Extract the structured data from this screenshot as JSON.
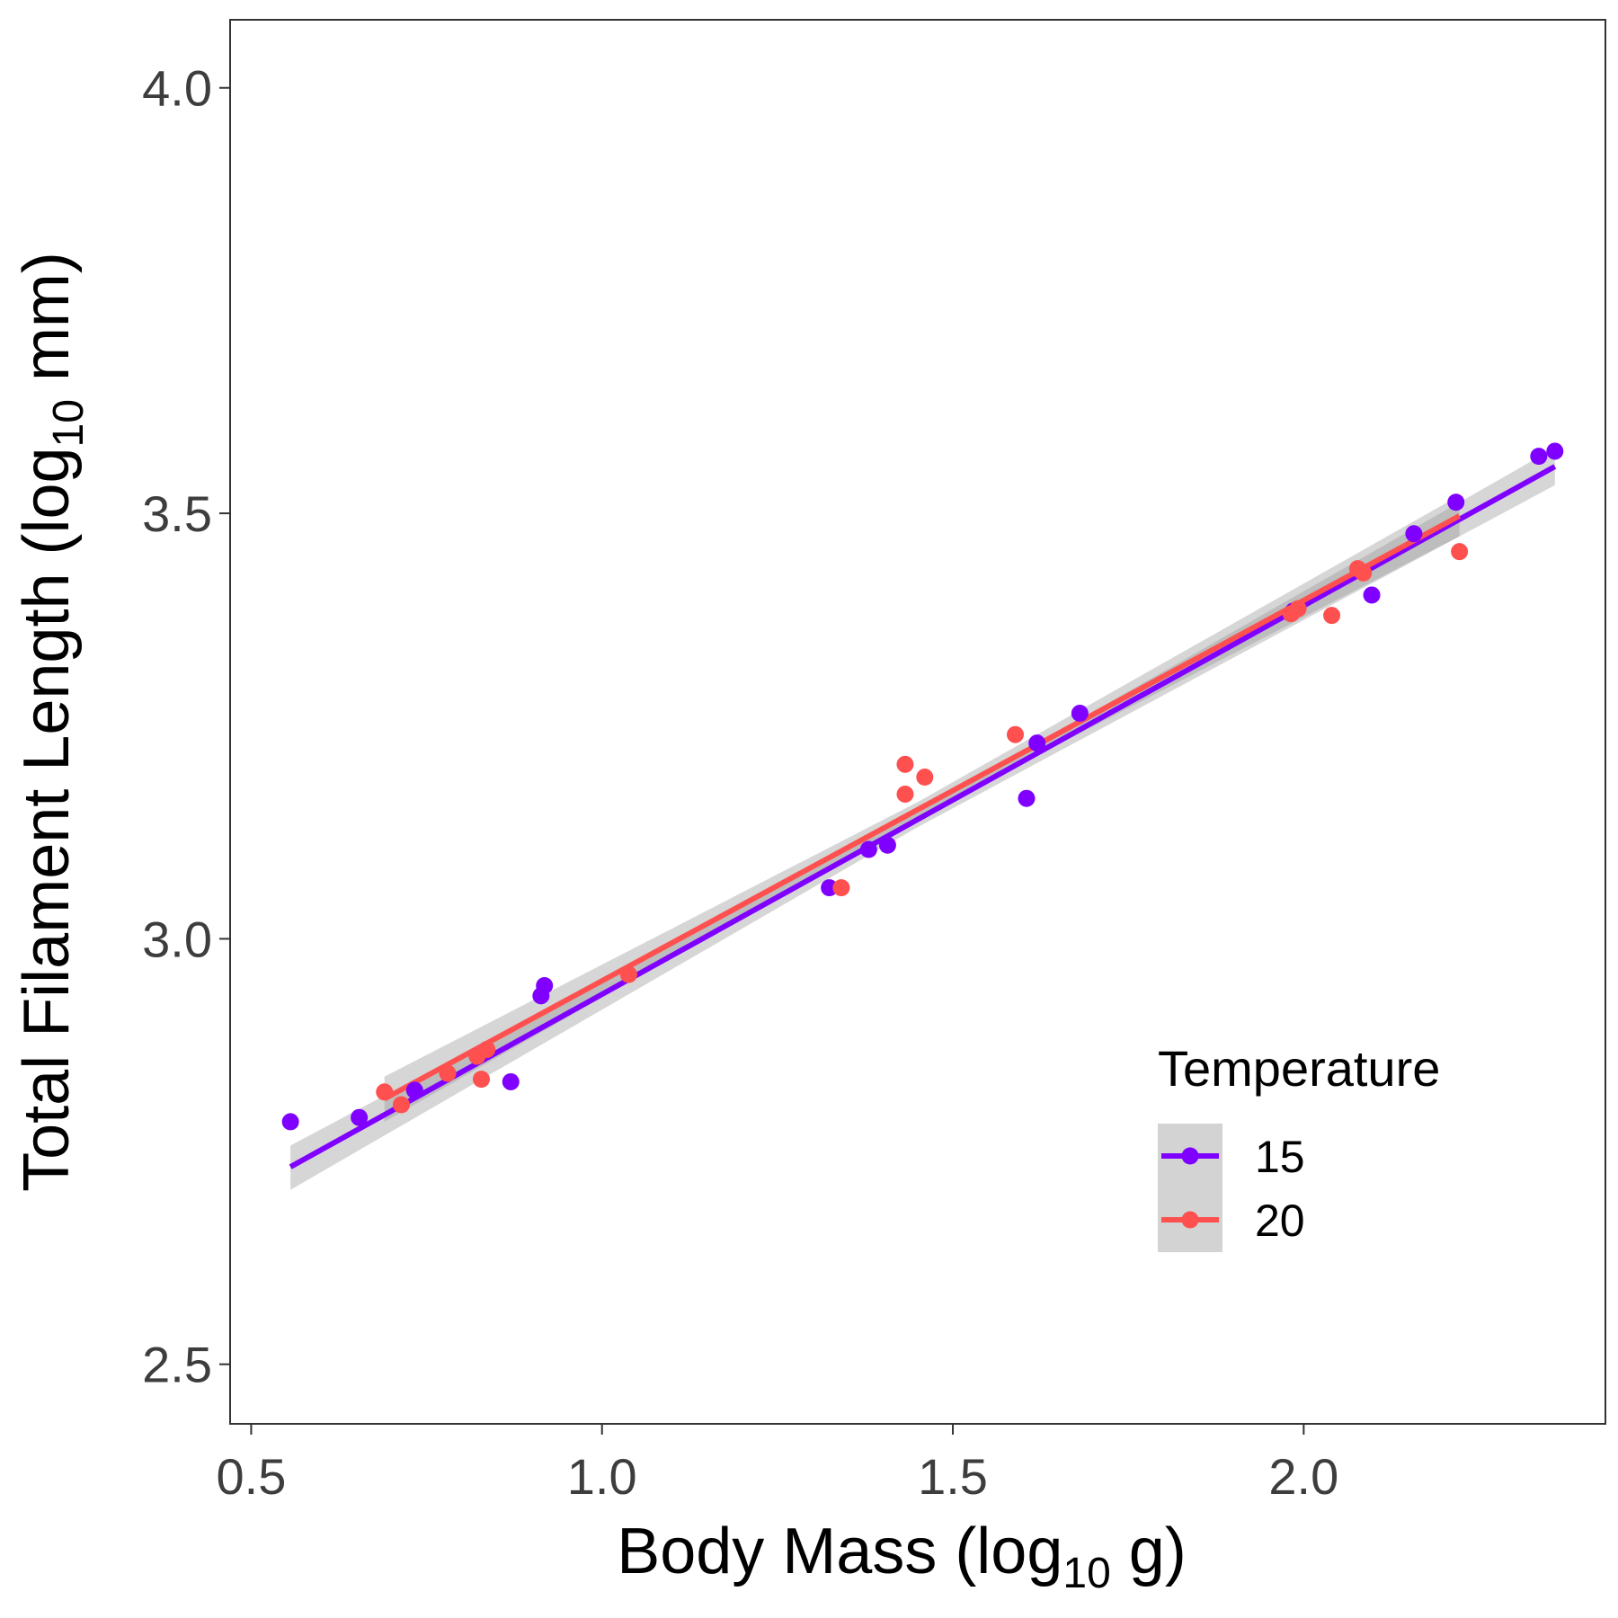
{
  "chart_data": {
    "type": "scatter",
    "xlabel": {
      "main": "Body Mass (log",
      "sub": "10",
      "tail": " g)"
    },
    "ylabel": {
      "main": "Total Filament Length (log",
      "sub": "10",
      "tail": " mm)"
    },
    "xlim": [
      0.47,
      2.43
    ],
    "ylim": [
      2.43,
      4.08
    ],
    "xticks": [
      0.5,
      1.0,
      1.5,
      2.0
    ],
    "xtick_labels": [
      "0.5",
      "1.0",
      "1.5",
      "2.0"
    ],
    "yticks": [
      2.5,
      3.0,
      3.5,
      4.0
    ],
    "ytick_labels": [
      "2.5",
      "3.0",
      "3.5",
      "4.0"
    ],
    "grid": false,
    "legend": {
      "title": "Temperature",
      "position": "right-bottom"
    },
    "series": [
      {
        "name": "15",
        "color": "#8000FF",
        "points": [
          [
            0.556,
            2.785
          ],
          [
            0.654,
            2.79
          ],
          [
            0.733,
            2.822
          ],
          [
            0.87,
            2.832
          ],
          [
            0.913,
            2.933
          ],
          [
            0.918,
            2.945
          ],
          [
            1.324,
            3.06
          ],
          [
            1.38,
            3.105
          ],
          [
            1.407,
            3.11
          ],
          [
            1.605,
            3.165
          ],
          [
            1.62,
            3.23
          ],
          [
            1.681,
            3.265
          ],
          [
            1.985,
            3.385
          ],
          [
            2.097,
            3.404
          ],
          [
            2.157,
            3.476
          ],
          [
            2.217,
            3.513
          ],
          [
            2.335,
            3.567
          ],
          [
            2.358,
            3.573
          ]
        ],
        "fit": {
          "x": [
            0.556,
            2.358
          ],
          "y": [
            2.732,
            3.555
          ]
        },
        "band": {
          "x": [
            0.556,
            2.358
          ],
          "lower": [
            2.705,
            3.533
          ],
          "upper": [
            2.757,
            3.577
          ],
          "center_x": 1.45,
          "center_half_width": 0.009
        }
      },
      {
        "name": "20",
        "color": "#FF5050",
        "points": [
          [
            0.69,
            2.82
          ],
          [
            0.714,
            2.805
          ],
          [
            0.78,
            2.842
          ],
          [
            0.822,
            2.862
          ],
          [
            0.828,
            2.835
          ],
          [
            0.836,
            2.87
          ],
          [
            1.038,
            2.958
          ],
          [
            1.341,
            3.06
          ],
          [
            1.432,
            3.17
          ],
          [
            1.432,
            3.205
          ],
          [
            1.46,
            3.19
          ],
          [
            1.589,
            3.24
          ],
          [
            1.982,
            3.382
          ],
          [
            1.992,
            3.388
          ],
          [
            2.04,
            3.38
          ],
          [
            2.077,
            3.435
          ],
          [
            2.085,
            3.43
          ],
          [
            2.222,
            3.455
          ]
        ],
        "fit": {
          "x": [
            0.69,
            2.222
          ],
          "y": [
            2.812,
            3.497
          ]
        },
        "band": {
          "x": [
            0.69,
            2.222
          ],
          "lower": [
            2.785,
            3.473
          ],
          "upper": [
            2.838,
            3.521
          ],
          "center_x": 1.45,
          "center_half_width": 0.009
        }
      }
    ]
  }
}
